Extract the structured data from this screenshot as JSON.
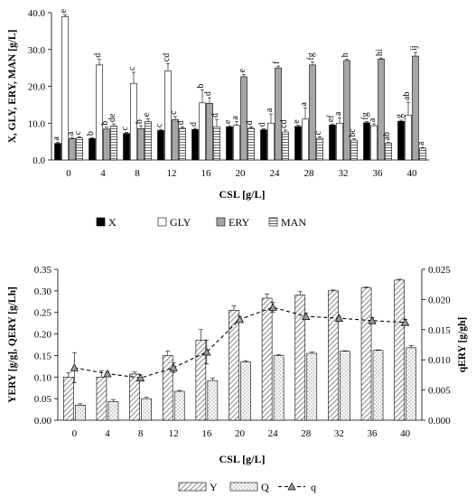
{
  "chart_data": [
    {
      "type": "bar",
      "title": "",
      "xlabel": "CSL [g/L]",
      "ylabel": "X, GLY, ERY, MAN [g/L]",
      "ylim": [
        0,
        40
      ],
      "yticks": [
        "0.0",
        "10.0",
        "20.0",
        "30.0",
        "40.0"
      ],
      "categories": [
        "0",
        "4",
        "8",
        "12",
        "16",
        "20",
        "24",
        "28",
        "32",
        "36",
        "40"
      ],
      "legend_position": "bottom",
      "series": [
        {
          "name": "X",
          "color": "#000000",
          "values": [
            4.5,
            5.8,
            7.2,
            8.0,
            8.3,
            9.0,
            8.2,
            9.1,
            9.5,
            10.1,
            10.5
          ],
          "errors": [
            0.3,
            0.3,
            0.3,
            0.3,
            0.3,
            0.3,
            0.3,
            0.3,
            0.3,
            0.3,
            0.3
          ],
          "labels": [
            "a",
            "b",
            "c",
            "c",
            "d",
            "e",
            "d",
            "e",
            "ef",
            "fg",
            "g"
          ]
        },
        {
          "name": "GLY",
          "color": "#ffffff",
          "values": [
            38.9,
            25.8,
            20.8,
            24.2,
            15.5,
            9.4,
            10.0,
            11.1,
            10.0,
            9.3,
            12.2
          ],
          "errors": [
            0.5,
            1.5,
            3.0,
            2.0,
            3.5,
            1.0,
            2.5,
            3.0,
            1.5,
            0.5,
            3.5
          ],
          "labels": [
            "e",
            "d",
            "c",
            "cd",
            "b",
            "a",
            "a",
            "a",
            "a",
            "a",
            "ab"
          ]
        },
        {
          "name": "ERY",
          "color": "#a6a6a6",
          "values": [
            5.8,
            8.4,
            8.5,
            11.0,
            15.4,
            22.6,
            25.0,
            25.8,
            27.0,
            27.4,
            28.2
          ],
          "errors": [
            0.3,
            0.5,
            0.8,
            0.8,
            1.5,
            0.6,
            0.5,
            0.8,
            0.4,
            0.3,
            1.0
          ],
          "labels": [
            "a",
            "b",
            "b",
            "c",
            "d",
            "e",
            "f",
            "fg",
            "h",
            "hi",
            "ij"
          ]
        },
        {
          "name": "MAN",
          "color": "#ffffff",
          "values": [
            6.0,
            9.2,
            10.4,
            8.6,
            9.0,
            8.6,
            7.6,
            5.9,
            5.4,
            4.6,
            3.2
          ],
          "errors": [
            0.3,
            0.6,
            0.8,
            0.4,
            2.0,
            0.4,
            0.5,
            0.4,
            0.3,
            0.2,
            0.2
          ],
          "labels": [
            "c",
            "de",
            "e",
            "d",
            "d",
            "d",
            "cd",
            "c",
            "bc",
            "ab",
            "a"
          ]
        }
      ]
    },
    {
      "type": "bar+line",
      "title": "",
      "xlabel": "CSL [g/L]",
      "ylabel_left": "YERY [g/g], QERY [g/Lh]",
      "ylabel_right": "qERY [g/gh]",
      "ylim_left": [
        0,
        0.35
      ],
      "ylim_right": [
        0,
        0.025
      ],
      "yticks_left": [
        "0.00",
        "0.05",
        "0.10",
        "0.15",
        "0.20",
        "0.25",
        "0.30",
        "0.35"
      ],
      "yticks_right": [
        "0.000",
        "0.005",
        "0.010",
        "0.015",
        "0.020",
        "0.025"
      ],
      "categories": [
        "0",
        "4",
        "8",
        "12",
        "16",
        "20",
        "24",
        "28",
        "32",
        "36",
        "40"
      ],
      "legend_position": "bottom",
      "series": [
        {
          "name": "Y",
          "axis": "left",
          "values": [
            0.1,
            0.1,
            0.107,
            0.15,
            0.185,
            0.255,
            0.283,
            0.29,
            0.3,
            0.307,
            0.325
          ],
          "errors": [
            0.01,
            0.015,
            0.005,
            0.01,
            0.025,
            0.01,
            0.01,
            0.008,
            0.002,
            0.002,
            0.002
          ]
        },
        {
          "name": "Q",
          "axis": "left",
          "values": [
            0.035,
            0.043,
            0.05,
            0.067,
            0.092,
            0.135,
            0.15,
            0.155,
            0.16,
            0.162,
            0.168
          ],
          "errors": [
            0.003,
            0.005,
            0.003,
            0.002,
            0.006,
            0.003,
            0.002,
            0.003,
            0.001,
            0.001,
            0.005
          ]
        },
        {
          "name": "q",
          "axis": "right",
          "values": [
            0.0087,
            0.0077,
            0.007,
            0.0087,
            0.0113,
            0.0167,
            0.0187,
            0.0172,
            0.0169,
            0.0165,
            0.0162
          ],
          "errors": [
            0.0025,
            0.0003,
            0.0005,
            0.0008,
            0.002,
            0.0005,
            0.0008,
            0.0005,
            0.0003,
            0.0005,
            0.0005
          ]
        }
      ]
    }
  ]
}
